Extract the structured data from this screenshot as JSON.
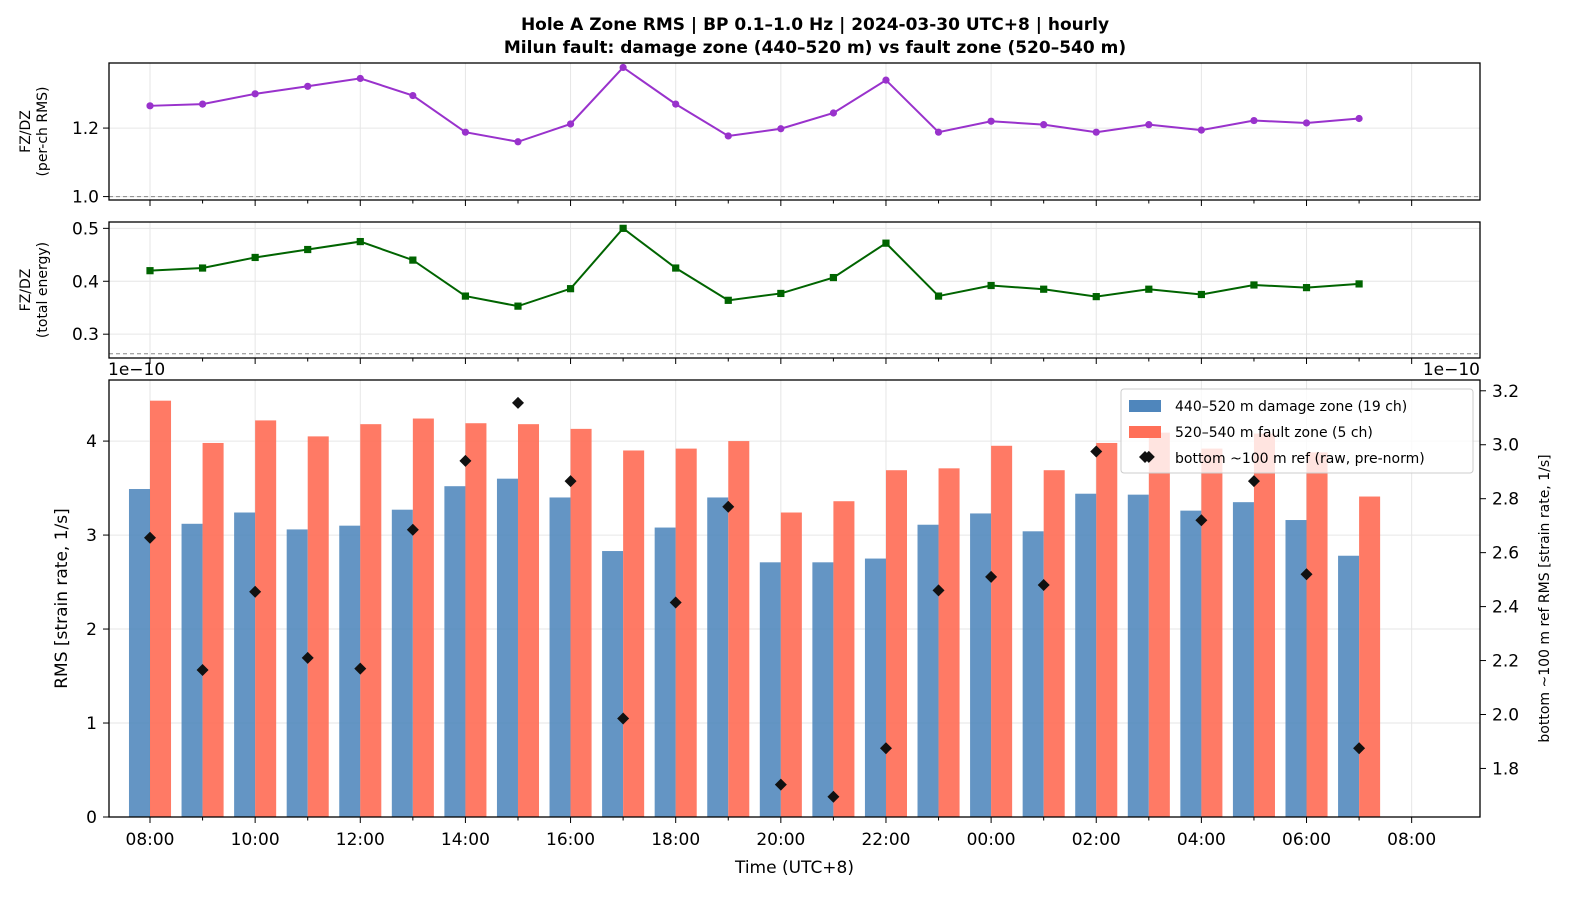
{
  "figure": {
    "title_line1": "Hole A Zone RMS  |  BP 0.1–1.0 Hz  |  2024-03-30 UTC+8  |  hourly",
    "title_line2": "Milun fault: damage zone (440–520 m) vs fault zone (520–540 m)"
  },
  "chart_data": [
    {
      "type": "line",
      "ylabel_line1": "FZ/DZ",
      "ylabel_line2": "(per-ch RMS)",
      "ylim": [
        0.99,
        1.39
      ],
      "yticks": [
        1.0,
        1.2
      ],
      "ytick_labels": [
        "1.0",
        "1.2"
      ],
      "reference_line": 1.0,
      "color": "#9932cc",
      "marker": "circle",
      "values": [
        1.265,
        1.27,
        1.3,
        1.322,
        1.345,
        1.295,
        1.188,
        1.16,
        1.212,
        1.377,
        1.27,
        1.177,
        1.198,
        1.244,
        1.34,
        1.188,
        1.22,
        1.21,
        1.188,
        1.21,
        1.194,
        1.222,
        1.215,
        1.228
      ]
    },
    {
      "type": "line",
      "ylabel_line1": "FZ/DZ",
      "ylabel_line2": "(total energy)",
      "ylim": [
        0.255,
        0.512
      ],
      "yticks": [
        0.3,
        0.4,
        0.5
      ],
      "ytick_labels": [
        "0.3",
        "0.4",
        "0.5"
      ],
      "reference_line": 0.263,
      "color": "#006400",
      "marker": "square",
      "values": [
        0.42,
        0.425,
        0.445,
        0.46,
        0.475,
        0.44,
        0.372,
        0.353,
        0.386,
        0.5,
        0.425,
        0.364,
        0.377,
        0.407,
        0.472,
        0.372,
        0.392,
        0.385,
        0.371,
        0.385,
        0.375,
        0.393,
        0.388,
        0.395
      ]
    },
    {
      "type": "bar",
      "xlabel": "Time (UTC+8)",
      "ylabel": "RMS  [strain rate, 1/s]",
      "ylabel_right": "bottom ~100 m ref RMS  [strain rate, 1/s]",
      "offset_left": "1e−10",
      "offset_right": "1e−10",
      "ylim": [
        0,
        4.65
      ],
      "yticks": [
        0,
        1,
        2,
        3,
        4
      ],
      "ytick_labels": [
        "0",
        "1",
        "2",
        "3",
        "4"
      ],
      "ylim_right": [
        1.62,
        3.24
      ],
      "yticks_right": [
        1.8,
        2.0,
        2.2,
        2.4,
        2.6,
        2.8,
        3.0,
        3.2
      ],
      "ytick_labels_right": [
        "1.8",
        "2.0",
        "2.2",
        "2.4",
        "2.6",
        "2.8",
        "3.0",
        "3.2"
      ],
      "xlim": [
        -0.78,
        25.3
      ],
      "x_tick_positions": [
        0,
        2,
        4,
        6,
        8,
        10,
        12,
        14,
        16,
        18,
        20,
        22,
        24
      ],
      "x_tick_labels": [
        "08:00",
        "10:00",
        "12:00",
        "14:00",
        "16:00",
        "18:00",
        "20:00",
        "22:00",
        "00:00",
        "02:00",
        "04:00",
        "06:00",
        "08:00"
      ],
      "series": [
        {
          "name": "440–520 m  damage zone (19 ch)",
          "kind": "bar",
          "color": "#4f86bc",
          "values": [
            3.49,
            3.12,
            3.24,
            3.06,
            3.1,
            3.27,
            3.52,
            3.6,
            3.4,
            2.83,
            3.08,
            3.4,
            2.71,
            2.71,
            2.75,
            3.11,
            3.23,
            3.04,
            3.44,
            3.43,
            3.26,
            3.35,
            3.16,
            2.78
          ]
        },
        {
          "name": "520–540 m  fault zone (5 ch)",
          "kind": "bar",
          "color": "#ff6f58",
          "values": [
            4.43,
            3.98,
            4.22,
            4.05,
            4.18,
            4.24,
            4.19,
            4.18,
            4.13,
            3.9,
            3.92,
            4.0,
            3.24,
            3.36,
            3.69,
            3.71,
            3.95,
            3.69,
            3.98,
            4.09,
            3.92,
            4.08,
            3.88,
            3.41
          ]
        },
        {
          "name": "bottom ~100 m ref (raw, pre-norm)",
          "kind": "scatter",
          "axis": "right",
          "color": "#111111",
          "marker": "diamond",
          "values": [
            2.655,
            2.165,
            2.455,
            2.21,
            2.17,
            2.685,
            2.94,
            3.155,
            2.865,
            1.985,
            2.415,
            2.77,
            1.74,
            1.695,
            1.875,
            2.46,
            2.51,
            2.48,
            2.975,
            2.955,
            2.72,
            2.865,
            2.52,
            1.875
          ]
        }
      ],
      "legend_position": "upper right"
    }
  ]
}
